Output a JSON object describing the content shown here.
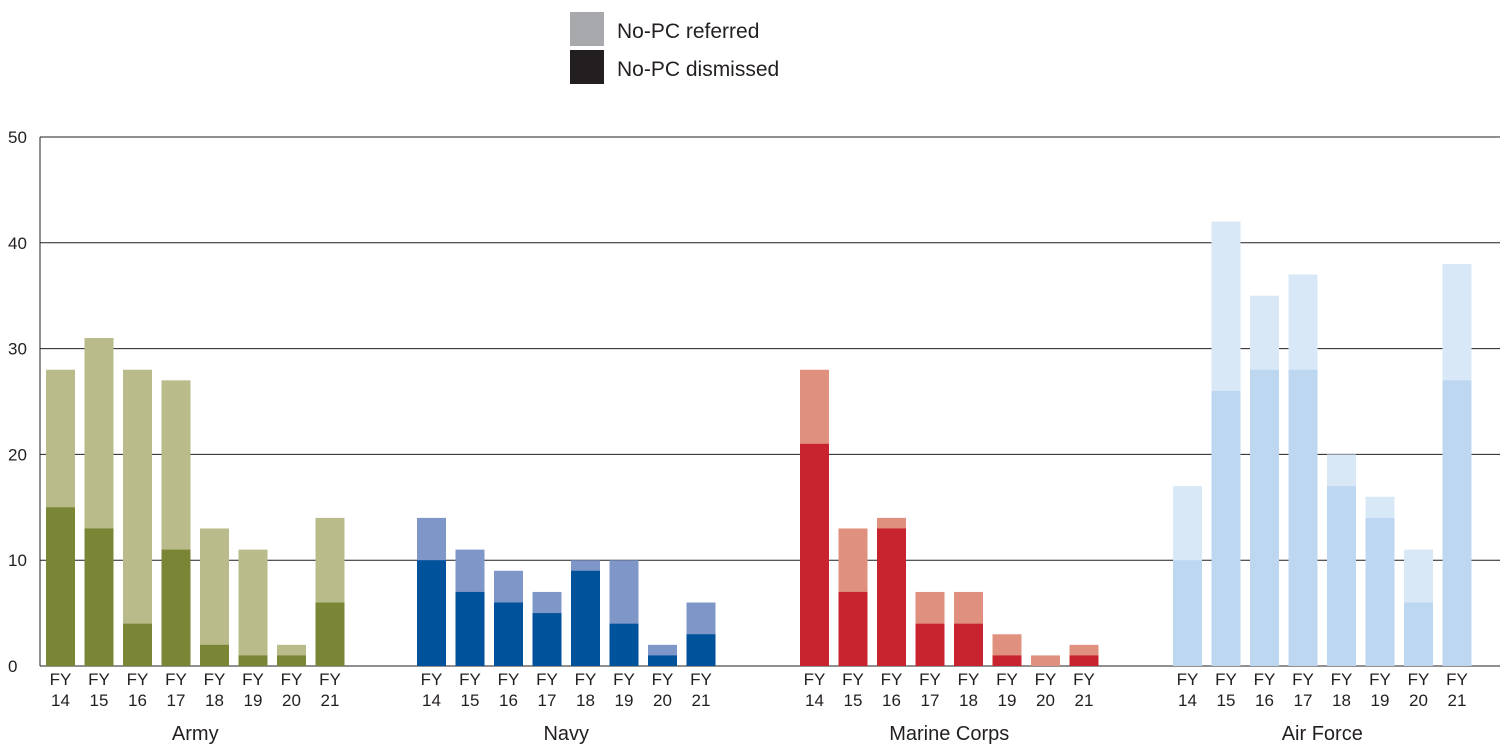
{
  "chart_data": {
    "type": "bar",
    "stacked": "overlay",
    "ylim": [
      0,
      50
    ],
    "yticks": [
      0,
      10,
      20,
      30,
      40,
      50
    ],
    "grid": true,
    "legend": {
      "placement": "top-center",
      "entries": [
        {
          "label": "No-PC referred",
          "color": "#a7a9ac"
        },
        {
          "label": "No-PC dismissed",
          "color": "#231f20"
        }
      ]
    },
    "fiscal_year_labels": [
      [
        "FY",
        "14"
      ],
      [
        "FY",
        "15"
      ],
      [
        "FY",
        "16"
      ],
      [
        "FY",
        "17"
      ],
      [
        "FY",
        "18"
      ],
      [
        "FY",
        "19"
      ],
      [
        "FY",
        "20"
      ],
      [
        "FY",
        "21"
      ]
    ],
    "groups": [
      {
        "name": "Army",
        "colors": {
          "referred": "#b9bc8a",
          "dismissed": "#7a8535"
        },
        "referred": [
          28,
          31,
          28,
          27,
          13,
          11,
          2,
          14
        ],
        "dismissed": [
          15,
          13,
          4,
          11,
          2,
          1,
          1,
          6
        ]
      },
      {
        "name": "Navy",
        "colors": {
          "referred": "#7f96c8",
          "dismissed": "#00529b"
        },
        "referred": [
          14,
          11,
          9,
          7,
          10,
          10,
          2,
          6
        ],
        "dismissed": [
          10,
          7,
          6,
          5,
          9,
          4,
          1,
          3
        ]
      },
      {
        "name": "Marine Corps",
        "colors": {
          "referred": "#e0907e",
          "dismissed": "#c8242f"
        },
        "referred": [
          28,
          13,
          14,
          7,
          7,
          3,
          1,
          2
        ],
        "dismissed": [
          21,
          7,
          13,
          4,
          4,
          1,
          0,
          1
        ]
      },
      {
        "name": "Air Force",
        "colors": {
          "referred": "#d8e8f7",
          "dismissed": "#bed7f0"
        },
        "referred": [
          17,
          42,
          35,
          37,
          20,
          16,
          11,
          38
        ],
        "dismissed": [
          10,
          26,
          28,
          28,
          17,
          14,
          6,
          27
        ]
      }
    ]
  }
}
